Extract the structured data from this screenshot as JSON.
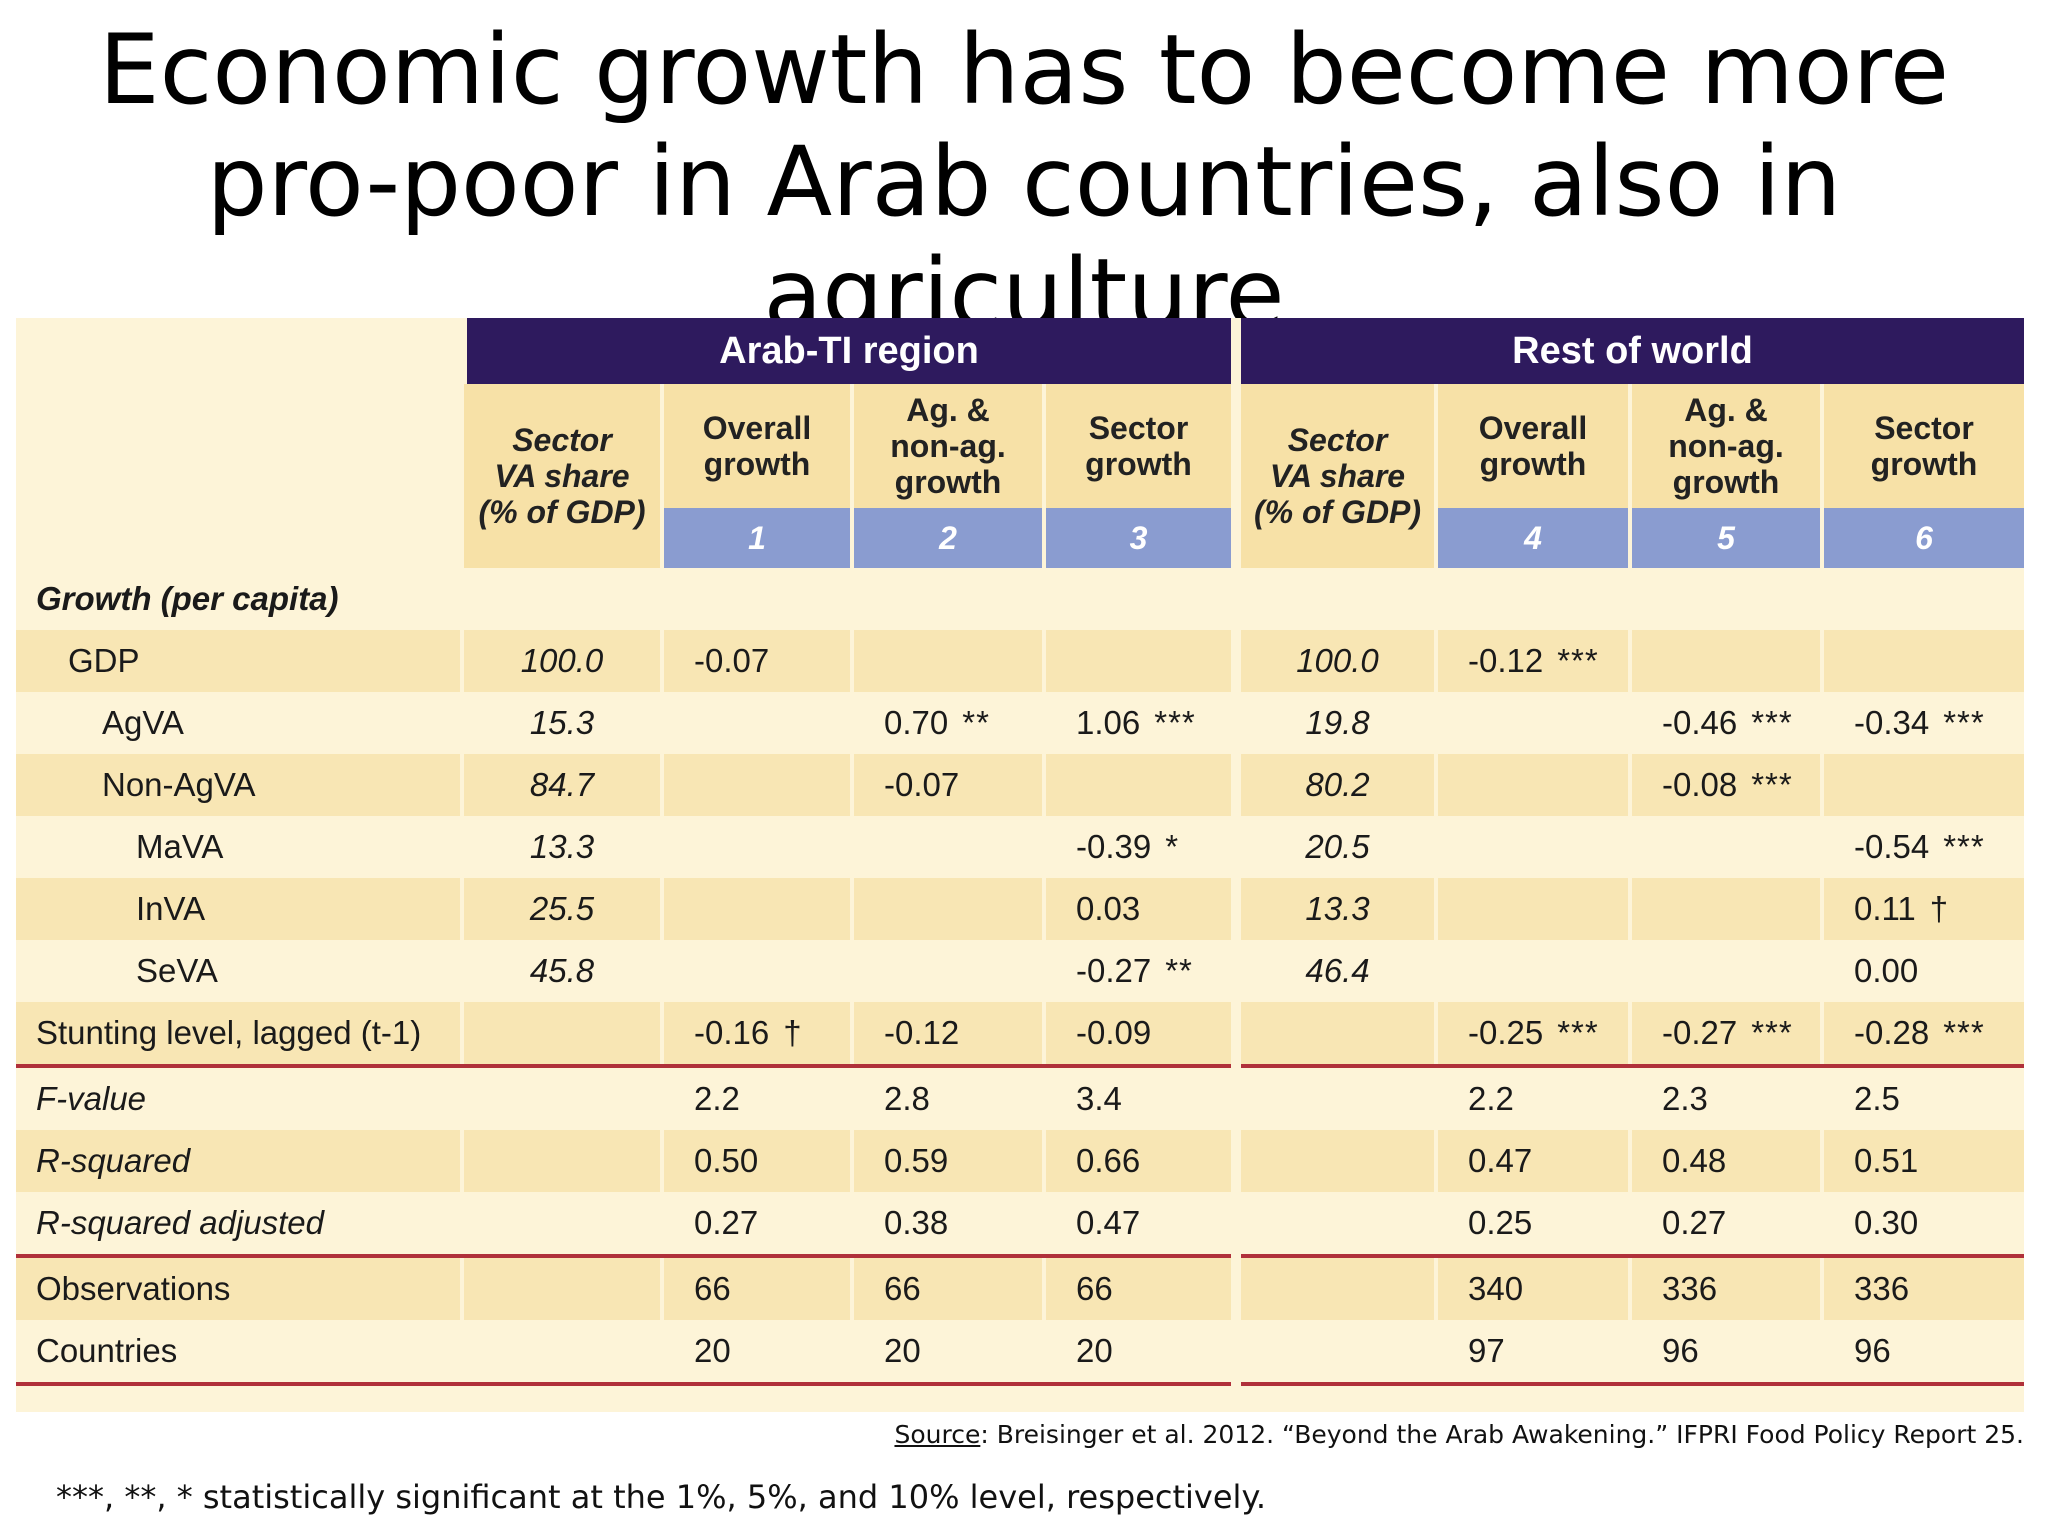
{
  "title": "Economic growth has to become more pro-poor in Arab countries, also in agriculture",
  "table": {
    "group_headers": [
      "Arab-TI region",
      "Rest of world"
    ],
    "columns": [
      {
        "label_lines": [
          "Sector",
          "VA share",
          "(% of GDP)"
        ],
        "number": ""
      },
      {
        "label_lines": [
          "Overall",
          "growth"
        ],
        "number": "1"
      },
      {
        "label_lines": [
          "Ag. &",
          "non-ag.",
          "growth"
        ],
        "number": "2"
      },
      {
        "label_lines": [
          "Sector",
          "growth"
        ],
        "number": "3"
      },
      {
        "label_lines": [
          "Sector",
          "VA share",
          "(% of GDP)"
        ],
        "number": ""
      },
      {
        "label_lines": [
          "Overall",
          "growth"
        ],
        "number": "4"
      },
      {
        "label_lines": [
          "Ag. &",
          "non-ag.",
          "growth"
        ],
        "number": "5"
      },
      {
        "label_lines": [
          "Sector",
          "growth"
        ],
        "number": "6"
      }
    ],
    "rows": [
      {
        "label": "Growth (per capita)",
        "cells": [
          [
            "",
            ""
          ],
          [
            "",
            ""
          ],
          [
            "",
            ""
          ],
          [
            "",
            ""
          ],
          [
            "",
            ""
          ],
          [
            "",
            ""
          ],
          [
            "",
            ""
          ],
          [
            "",
            ""
          ]
        ]
      },
      {
        "label": "GDP",
        "cells": [
          [
            "100.0",
            ""
          ],
          [
            "-0.07",
            ""
          ],
          [
            "",
            ""
          ],
          [
            "",
            ""
          ],
          [
            "100.0",
            ""
          ],
          [
            "-0.12",
            "***"
          ],
          [
            "",
            ""
          ],
          [
            "",
            ""
          ]
        ]
      },
      {
        "label": "AgVA",
        "cells": [
          [
            "15.3",
            ""
          ],
          [
            "",
            ""
          ],
          [
            "0.70",
            "**"
          ],
          [
            "1.06",
            "***"
          ],
          [
            "19.8",
            ""
          ],
          [
            "",
            ""
          ],
          [
            "-0.46",
            "***"
          ],
          [
            "-0.34",
            "***"
          ]
        ]
      },
      {
        "label": "Non-AgVA",
        "cells": [
          [
            "84.7",
            ""
          ],
          [
            "",
            ""
          ],
          [
            "-0.07",
            ""
          ],
          [
            "",
            ""
          ],
          [
            "80.2",
            ""
          ],
          [
            "",
            ""
          ],
          [
            "-0.08",
            "***"
          ],
          [
            "",
            ""
          ]
        ]
      },
      {
        "label": "MaVA",
        "cells": [
          [
            "13.3",
            ""
          ],
          [
            "",
            ""
          ],
          [
            "",
            ""
          ],
          [
            "-0.39",
            "*"
          ],
          [
            "20.5",
            ""
          ],
          [
            "",
            ""
          ],
          [
            "",
            ""
          ],
          [
            "-0.54",
            "***"
          ]
        ]
      },
      {
        "label": "InVA",
        "cells": [
          [
            "25.5",
            ""
          ],
          [
            "",
            ""
          ],
          [
            "",
            ""
          ],
          [
            "0.03",
            ""
          ],
          [
            "13.3",
            ""
          ],
          [
            "",
            ""
          ],
          [
            "",
            ""
          ],
          [
            "0.11",
            "†"
          ]
        ]
      },
      {
        "label": "SeVA",
        "cells": [
          [
            "45.8",
            ""
          ],
          [
            "",
            ""
          ],
          [
            "",
            ""
          ],
          [
            "-0.27",
            "**"
          ],
          [
            "46.4",
            ""
          ],
          [
            "",
            ""
          ],
          [
            "",
            ""
          ],
          [
            "0.00",
            ""
          ]
        ]
      },
      {
        "label": "Stunting level, lagged (t-1)",
        "cells": [
          [
            "",
            ""
          ],
          [
            "-0.16",
            "†"
          ],
          [
            "-0.12",
            ""
          ],
          [
            "-0.09",
            ""
          ],
          [
            "",
            ""
          ],
          [
            "-0.25",
            "***"
          ],
          [
            "-0.27",
            "***"
          ],
          [
            "-0.28",
            "***"
          ]
        ]
      },
      {
        "label": "F-value",
        "cells": [
          [
            "",
            ""
          ],
          [
            "2.2",
            ""
          ],
          [
            "2.8",
            ""
          ],
          [
            "3.4",
            ""
          ],
          [
            "",
            ""
          ],
          [
            "2.2",
            ""
          ],
          [
            "2.3",
            ""
          ],
          [
            "2.5",
            ""
          ]
        ]
      },
      {
        "label": "R-squared",
        "cells": [
          [
            "",
            ""
          ],
          [
            "0.50",
            ""
          ],
          [
            "0.59",
            ""
          ],
          [
            "0.66",
            ""
          ],
          [
            "",
            ""
          ],
          [
            "0.47",
            ""
          ],
          [
            "0.48",
            ""
          ],
          [
            "0.51",
            ""
          ]
        ]
      },
      {
        "label": "R-squared adjusted",
        "cells": [
          [
            "",
            ""
          ],
          [
            "0.27",
            ""
          ],
          [
            "0.38",
            ""
          ],
          [
            "0.47",
            ""
          ],
          [
            "",
            ""
          ],
          [
            "0.25",
            ""
          ],
          [
            "0.27",
            ""
          ],
          [
            "0.30",
            ""
          ]
        ]
      },
      {
        "label": "Observations",
        "cells": [
          [
            "",
            ""
          ],
          [
            "66",
            ""
          ],
          [
            "66",
            ""
          ],
          [
            "66",
            ""
          ],
          [
            "",
            ""
          ],
          [
            "340",
            ""
          ],
          [
            "336",
            ""
          ],
          [
            "336",
            ""
          ]
        ]
      },
      {
        "label": "Countries",
        "cells": [
          [
            "",
            ""
          ],
          [
            "20",
            ""
          ],
          [
            "20",
            ""
          ],
          [
            "20",
            ""
          ],
          [
            "",
            ""
          ],
          [
            "97",
            ""
          ],
          [
            "96",
            ""
          ],
          [
            "96",
            ""
          ]
        ]
      }
    ]
  },
  "source": {
    "label": "Source",
    "text": ": Breisinger et al. 2012. “Beyond the Arab Awakening.” IFPRI Food Policy Report 25."
  },
  "footnote": "***, **, * statistically significant at the 1%, 5%, and 10% level, respectively."
}
